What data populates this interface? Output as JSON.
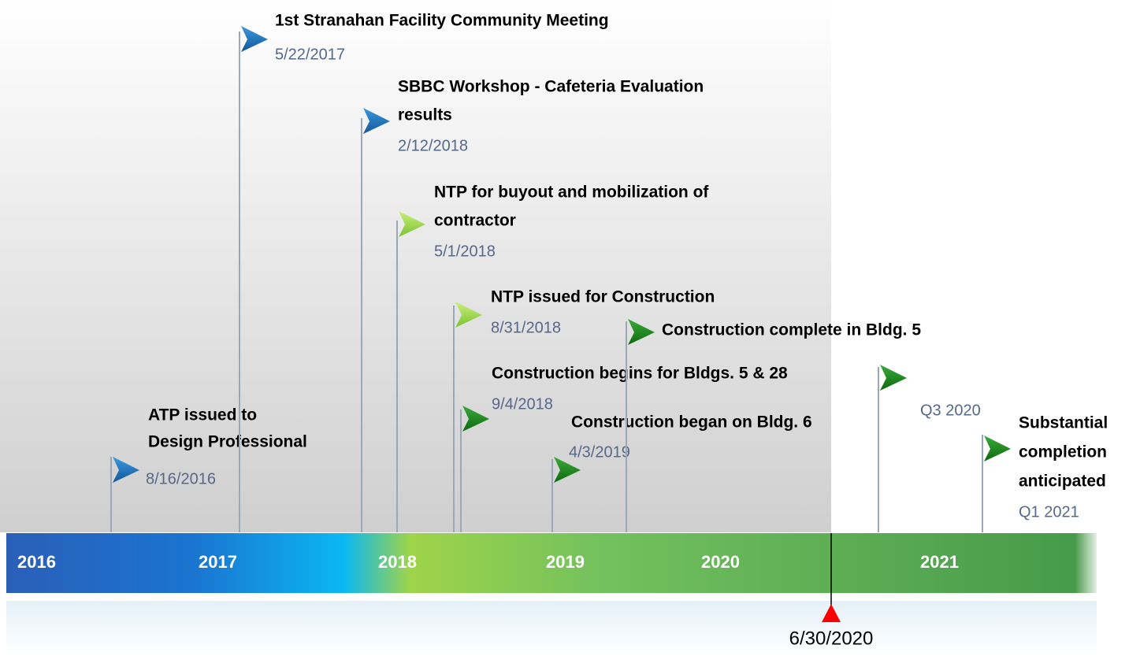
{
  "years": [
    "2016",
    "2017",
    "2018",
    "2019",
    "2020",
    "2021"
  ],
  "milestones": [
    {
      "title_lines": [
        "ATP issued to",
        "Design Professional"
      ],
      "date": "8/16/2016"
    },
    {
      "title_lines": [
        "1st Stranahan Facility Community Meeting"
      ],
      "date": "5/22/2017"
    },
    {
      "title_lines": [
        "SBBC Workshop - Cafeteria Evaluation",
        "results"
      ],
      "date": "2/12/2018"
    },
    {
      "title_lines": [
        "NTP for buyout and mobilization of",
        "contractor"
      ],
      "date": "5/1/2018"
    },
    {
      "title_lines": [
        "NTP issued for Construction"
      ],
      "date": "8/31/2018"
    },
    {
      "title_lines": [
        "Construction begins for Bldgs. 5 & 28"
      ],
      "date": "9/4/2018"
    },
    {
      "title_lines": [
        "Construction began on Bldg. 6"
      ],
      "date": "4/3/2019"
    },
    {
      "title_lines": [
        "Construction complete in Bldg. 5"
      ]
    },
    {
      "date": "Q3 2020"
    },
    {
      "title_lines": [
        "Substantial",
        "completion",
        "anticipated"
      ],
      "date": "Q1 2021"
    }
  ],
  "marker": "6/30/2020"
}
